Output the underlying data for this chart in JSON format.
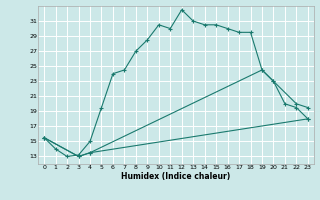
{
  "xlabel": "Humidex (Indice chaleur)",
  "bg_color": "#cce8e8",
  "grid_color": "#ffffff",
  "line_color": "#1a7a6e",
  "xlim": [
    -0.5,
    23.5
  ],
  "ylim": [
    12,
    33
  ],
  "yticks": [
    13,
    15,
    17,
    19,
    21,
    23,
    25,
    27,
    29,
    31
  ],
  "xticks": [
    0,
    1,
    2,
    3,
    4,
    5,
    6,
    7,
    8,
    9,
    10,
    11,
    12,
    13,
    14,
    15,
    16,
    17,
    18,
    19,
    20,
    21,
    22,
    23
  ],
  "series1_x": [
    0,
    1,
    2,
    3,
    4,
    5,
    6,
    7,
    8,
    9,
    10,
    11,
    12,
    13,
    14,
    15,
    16,
    17,
    18,
    19,
    20,
    21,
    22,
    23
  ],
  "series1_y": [
    15.5,
    14.0,
    13.0,
    13.2,
    15.0,
    19.5,
    24.0,
    24.5,
    27.0,
    28.5,
    30.5,
    30.0,
    32.5,
    31.0,
    30.5,
    30.5,
    30.0,
    29.5,
    29.5,
    24.5,
    23.0,
    20.0,
    19.5,
    18.0
  ],
  "series2_x": [
    0,
    3,
    4,
    19,
    20,
    22,
    23
  ],
  "series2_y": [
    15.5,
    13.0,
    13.5,
    24.5,
    23.0,
    20.0,
    19.5
  ],
  "series3_x": [
    0,
    3,
    4,
    23
  ],
  "series3_y": [
    15.5,
    13.0,
    13.5,
    18.0
  ],
  "marker": "+",
  "markersize": 3,
  "linewidth": 0.8
}
